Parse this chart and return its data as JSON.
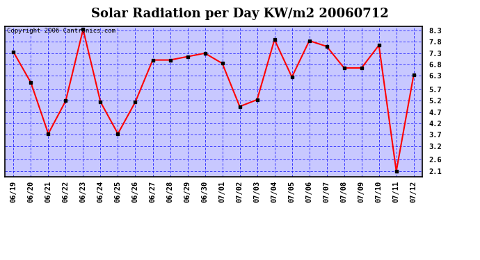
{
  "title": "Solar Radiation per Day KW/m2 20060712",
  "copyright_text": "Copyright 2006 Cantronics.com",
  "dates": [
    "06/19",
    "06/20",
    "06/21",
    "06/22",
    "06/23",
    "06/24",
    "06/25",
    "06/26",
    "06/27",
    "06/28",
    "06/29",
    "06/30",
    "07/01",
    "07/02",
    "07/03",
    "07/04",
    "07/05",
    "07/06",
    "07/07",
    "07/08",
    "07/09",
    "07/10",
    "07/11",
    "07/12"
  ],
  "values": [
    7.35,
    6.0,
    3.75,
    5.2,
    8.35,
    5.15,
    3.75,
    5.15,
    7.0,
    7.0,
    7.15,
    7.3,
    6.85,
    4.95,
    5.25,
    7.9,
    6.25,
    7.85,
    7.6,
    6.65,
    6.65,
    7.65,
    2.1,
    6.35
  ],
  "yticks": [
    2.1,
    2.6,
    3.2,
    3.7,
    4.2,
    4.7,
    5.2,
    5.7,
    6.3,
    6.8,
    7.3,
    7.8,
    8.3
  ],
  "ylim": [
    1.85,
    8.5
  ],
  "line_color": "red",
  "marker_color": "black",
  "outer_bg_color": "#ffffff",
  "plot_bg_color": "#c8c8ff",
  "grid_color": "blue",
  "title_fontsize": 13,
  "tick_fontsize": 7.5,
  "copyright_fontsize": 6.5
}
